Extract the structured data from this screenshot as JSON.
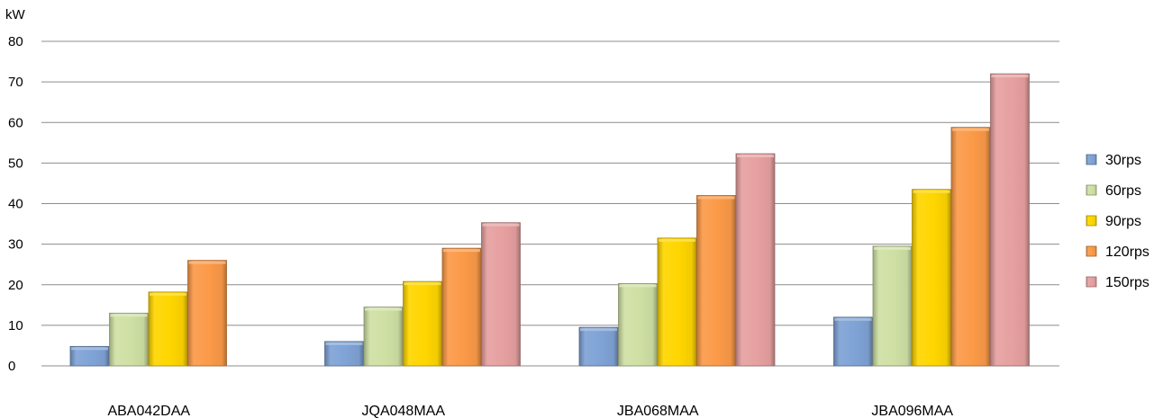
{
  "chart_data": {
    "type": "bar",
    "ylabel": "kW",
    "ylim": [
      0,
      80
    ],
    "yticks": [
      0,
      10,
      20,
      30,
      40,
      50,
      60,
      70,
      80
    ],
    "grid": true,
    "legend_position": "right",
    "categories": [
      "ABA042DAA",
      "JQA048MAA",
      "JBA068MAA",
      "JBA096MAA"
    ],
    "series": [
      {
        "name": "30rps",
        "color": "#7fa3d6",
        "values": [
          4.8,
          6.0,
          9.5,
          12.0
        ]
      },
      {
        "name": "60rps",
        "color": "#cfe0a4",
        "values": [
          13.0,
          14.5,
          20.3,
          29.5
        ]
      },
      {
        "name": "90rps",
        "color": "#ffd600",
        "values": [
          18.2,
          20.8,
          31.5,
          43.5
        ]
      },
      {
        "name": "120rps",
        "color": "#fb9a48",
        "values": [
          26.0,
          29.0,
          42.0,
          58.8
        ]
      },
      {
        "name": "150rps",
        "color": "#e6a0a0",
        "values": [
          null,
          35.3,
          52.3,
          72.0
        ]
      }
    ]
  }
}
